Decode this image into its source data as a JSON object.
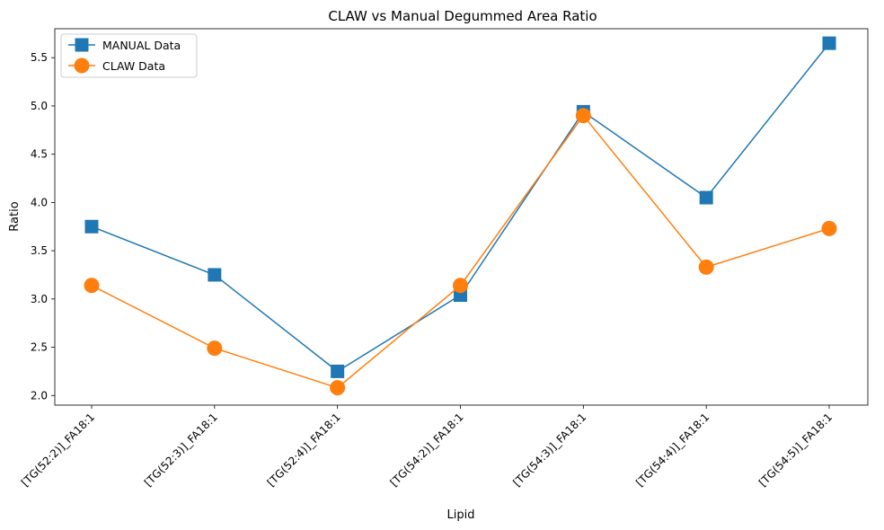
{
  "chart_data": {
    "type": "line",
    "title": "CLAW vs Manual Degummed Area Ratio",
    "xlabel": "Lipid",
    "ylabel": "Ratio",
    "categories": [
      "[TG(52:2)]_FA18:1",
      "[TG(52:3)]_FA18:1",
      "[TG(52:4)]_FA18:1",
      "[TG(54:2)]_FA18:1",
      "[TG(54:3)]_FA18:1",
      "[TG(54:4)]_FA18:1",
      "[TG(54:5)]_FA18:1"
    ],
    "ylim": [
      1.9,
      5.8
    ],
    "yticks": [
      "2.0",
      "2.5",
      "3.0",
      "3.5",
      "4.0",
      "4.5",
      "5.0",
      "5.5"
    ],
    "grid": false,
    "legend_position": "top-left",
    "series": [
      {
        "name": "MANUAL Data",
        "marker": "square",
        "color": "#1f77b4",
        "values": [
          3.75,
          3.25,
          2.25,
          3.04,
          4.94,
          4.05,
          5.65
        ]
      },
      {
        "name": "CLAW Data",
        "marker": "circle",
        "color": "#ff7f0e",
        "values": [
          3.14,
          2.49,
          2.08,
          3.14,
          4.9,
          3.33,
          3.73
        ]
      }
    ]
  }
}
